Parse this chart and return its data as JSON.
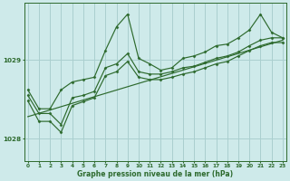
{
  "xlabel": "Graphe pression niveau de la mer (hPa)",
  "bg_color": "#ceeaea",
  "grid_color": "#aacfcf",
  "line_color": "#2d6a2d",
  "x_ticks": [
    0,
    1,
    2,
    3,
    4,
    5,
    6,
    7,
    8,
    9,
    10,
    11,
    12,
    13,
    14,
    15,
    16,
    17,
    18,
    19,
    20,
    21,
    22,
    23
  ],
  "y_ticks": [
    1028,
    1029
  ],
  "ylim": [
    1027.72,
    1029.72
  ],
  "xlim": [
    -0.3,
    23.3
  ],
  "y_main": [
    1028.62,
    1028.38,
    1028.38,
    1028.62,
    1028.72,
    1028.75,
    1028.78,
    1029.12,
    1029.42,
    1029.58,
    1029.02,
    1028.95,
    1028.87,
    1028.9,
    1029.02,
    1029.05,
    1029.1,
    1029.18,
    1029.2,
    1029.28,
    1029.38,
    1029.58,
    1029.35,
    1029.28
  ],
  "y_line2": [
    1028.55,
    1028.32,
    1028.32,
    1028.18,
    1028.52,
    1028.55,
    1028.6,
    1028.9,
    1028.95,
    1029.08,
    1028.85,
    1028.82,
    1028.82,
    1028.85,
    1028.9,
    1028.92,
    1028.97,
    1029.02,
    1029.05,
    1029.1,
    1029.18,
    1029.25,
    1029.28,
    1029.28
  ],
  "y_line3": [
    1028.48,
    1028.22,
    1028.22,
    1028.08,
    1028.42,
    1028.47,
    1028.52,
    1028.8,
    1028.85,
    1028.98,
    1028.78,
    1028.75,
    1028.75,
    1028.78,
    1028.82,
    1028.85,
    1028.9,
    1028.95,
    1028.98,
    1029.05,
    1029.12,
    1029.18,
    1029.22,
    1029.22
  ],
  "trend_x": [
    0,
    23
  ],
  "trend_y": [
    1028.28,
    1029.25
  ]
}
